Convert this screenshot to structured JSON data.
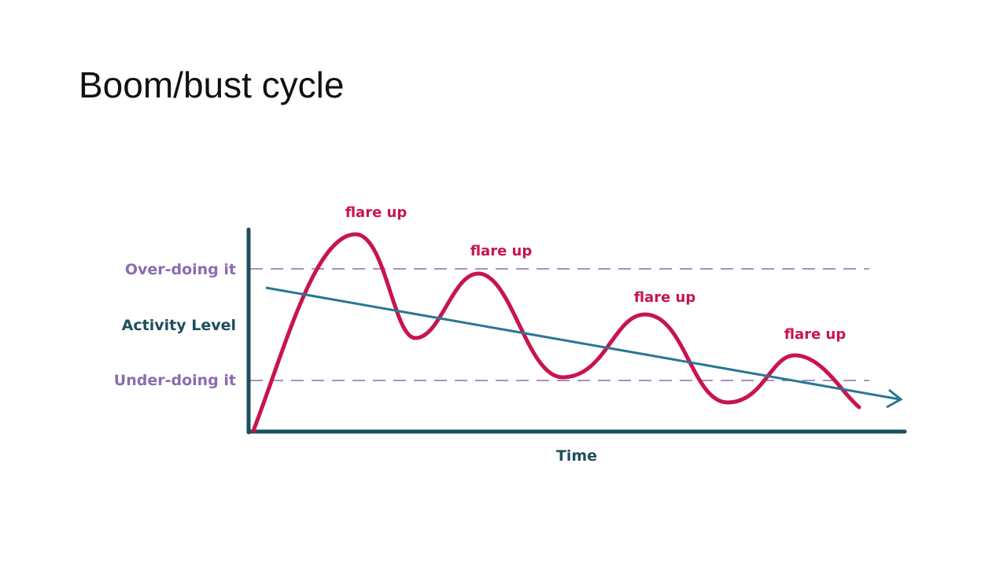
{
  "title": "Boom/bust cycle",
  "diagram": {
    "y_labels": [
      "Over-doing it",
      "Activity Level",
      "Under-doing it"
    ],
    "x_label": "Time",
    "annotations": [
      "flare up",
      "flare up",
      "flare up",
      "flare up"
    ]
  }
}
